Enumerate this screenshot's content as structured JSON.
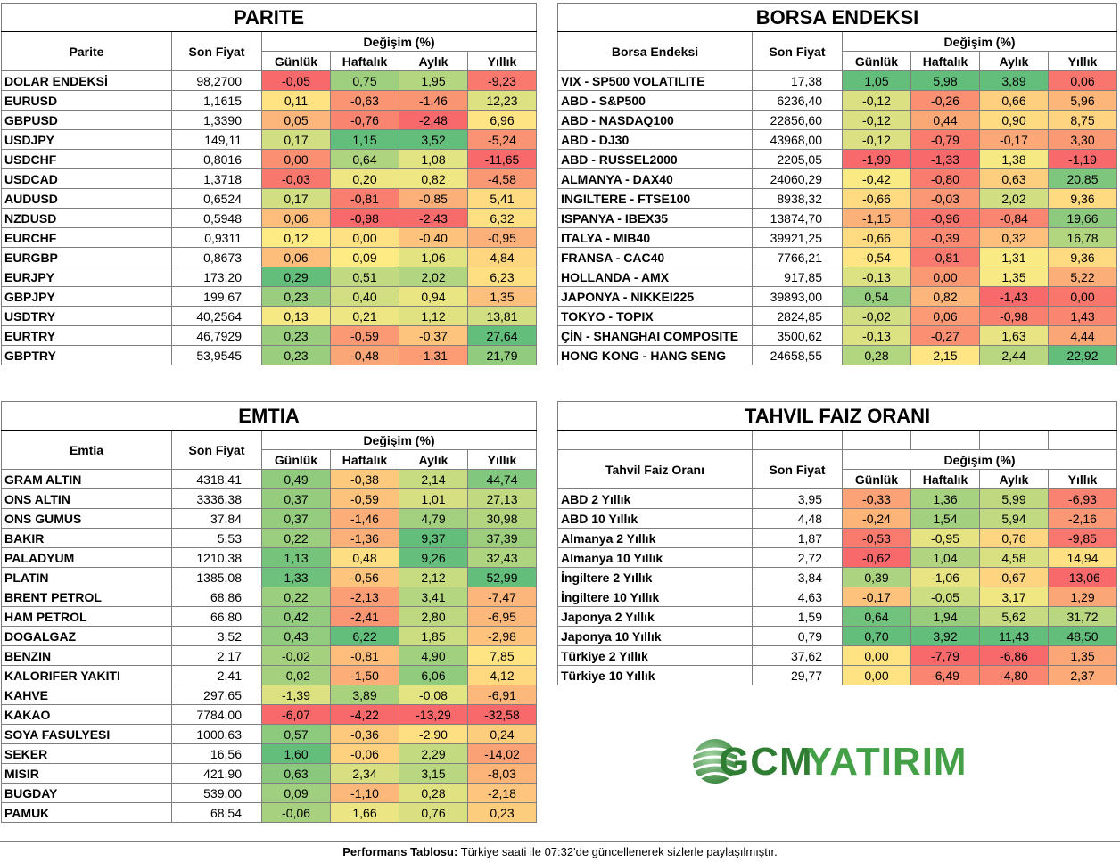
{
  "colors": {
    "green": "#63be7b",
    "yellow": "#ffeb84",
    "red": "#f8696b"
  },
  "parite": {
    "title": "PARITE",
    "col_name": "Parite",
    "col_price": "Son Fiyat",
    "col_change": "Değişim (%)",
    "subcols": [
      "Günlük",
      "Haftalık",
      "Aylık",
      "Yıllık"
    ],
    "rows": [
      {
        "name": "DOLAR ENDEKSİ",
        "price": "98,2700",
        "values": [
          "-0,05",
          "0,75",
          "1,95",
          "-9,23"
        ]
      },
      {
        "name": "EURUSD",
        "price": "1,1615",
        "values": [
          "0,11",
          "-0,63",
          "-1,46",
          "12,23"
        ]
      },
      {
        "name": "GBPUSD",
        "price": "1,3390",
        "values": [
          "0,05",
          "-0,76",
          "-2,48",
          "6,96"
        ]
      },
      {
        "name": "USDJPY",
        "price": "149,11",
        "values": [
          "0,17",
          "1,15",
          "3,52",
          "-5,24"
        ]
      },
      {
        "name": "USDCHF",
        "price": "0,8016",
        "values": [
          "0,00",
          "0,64",
          "1,08",
          "-11,65"
        ]
      },
      {
        "name": "USDCAD",
        "price": "1,3718",
        "values": [
          "-0,03",
          "0,20",
          "0,82",
          "-4,58"
        ]
      },
      {
        "name": "AUDUSD",
        "price": "0,6524",
        "values": [
          "0,17",
          "-0,81",
          "-0,85",
          "5,41"
        ]
      },
      {
        "name": "NZDUSD",
        "price": "0,5948",
        "values": [
          "0,06",
          "-0,98",
          "-2,43",
          "6,32"
        ]
      },
      {
        "name": "EURCHF",
        "price": "0,9311",
        "values": [
          "0,12",
          "0,00",
          "-0,40",
          "-0,95"
        ]
      },
      {
        "name": "EURGBP",
        "price": "0,8673",
        "values": [
          "0,06",
          "0,09",
          "1,06",
          "4,84"
        ]
      },
      {
        "name": "EURJPY",
        "price": "173,20",
        "values": [
          "0,29",
          "0,51",
          "2,02",
          "6,23"
        ]
      },
      {
        "name": "GBPJPY",
        "price": "199,67",
        "values": [
          "0,23",
          "0,40",
          "0,94",
          "1,35"
        ]
      },
      {
        "name": "USDTRY",
        "price": "40,2564",
        "values": [
          "0,13",
          "0,21",
          "1,12",
          "13,81"
        ]
      },
      {
        "name": "EURTRY",
        "price": "46,7929",
        "values": [
          "0,23",
          "-0,59",
          "-0,37",
          "27,64"
        ]
      },
      {
        "name": "GBPTRY",
        "price": "53,9545",
        "values": [
          "0,23",
          "-0,48",
          "-1,31",
          "21,79"
        ]
      }
    ]
  },
  "borsa": {
    "title": "BORSA ENDEKSI",
    "col_name": "Borsa Endeksi",
    "col_price": "Son Fiyat",
    "col_change": "Değişim (%)",
    "subcols": [
      "Günlük",
      "Haftalık",
      "Aylık",
      "Yıllık"
    ],
    "rows": [
      {
        "name": "VIX  - SP500 VOLATILITE",
        "price": "17,38",
        "values": [
          "1,05",
          "5,98",
          "3,89",
          "0,06"
        ]
      },
      {
        "name": "ABD - S&P500",
        "price": "6236,40",
        "values": [
          "-0,12",
          "-0,26",
          "0,66",
          "5,96"
        ]
      },
      {
        "name": "ABD - NASDAQ100",
        "price": "22856,60",
        "values": [
          "-0,12",
          "0,44",
          "0,90",
          "8,75"
        ]
      },
      {
        "name": "ABD - DJ30",
        "price": "43968,00",
        "values": [
          "-0,12",
          "-0,79",
          "-0,17",
          "3,30"
        ]
      },
      {
        "name": "ABD - RUSSEL2000",
        "price": "2205,05",
        "values": [
          "-1,99",
          "-1,33",
          "1,38",
          "-1,19"
        ]
      },
      {
        "name": "ALMANYA - DAX40",
        "price": "24060,29",
        "values": [
          "-0,42",
          "-0,80",
          "0,63",
          "20,85"
        ]
      },
      {
        "name": "INGILTERE - FTSE100",
        "price": "8938,32",
        "values": [
          "-0,66",
          "-0,03",
          "2,02",
          "9,36"
        ]
      },
      {
        "name": "ISPANYA - IBEX35",
        "price": "13874,70",
        "values": [
          "-1,15",
          "-0,96",
          "-0,84",
          "19,66"
        ]
      },
      {
        "name": "ITALYA - MIB40",
        "price": "39921,25",
        "values": [
          "-0,66",
          "-0,39",
          "0,32",
          "16,78"
        ]
      },
      {
        "name": "FRANSA - CAC40",
        "price": "7766,21",
        "values": [
          "-0,54",
          "-0,81",
          "1,31",
          "9,36"
        ]
      },
      {
        "name": "HOLLANDA - AMX",
        "price": "917,85",
        "values": [
          "-0,13",
          "0,00",
          "1,35",
          "5,22"
        ]
      },
      {
        "name": "JAPONYA - NIKKEI225",
        "price": "39893,00",
        "values": [
          "0,54",
          "0,82",
          "-1,43",
          "0,00"
        ]
      },
      {
        "name": "TOKYO - TOPIX",
        "price": "2824,85",
        "values": [
          "-0,02",
          "0,06",
          "-0,98",
          "1,43"
        ]
      },
      {
        "name": "ÇİN - SHANGHAI COMPOSITE",
        "price": "3500,62",
        "values": [
          "-0,13",
          "-0,27",
          "1,63",
          "4,44"
        ]
      },
      {
        "name": "HONG KONG - HANG SENG",
        "price": "24658,55",
        "values": [
          "0,28",
          "2,15",
          "2,44",
          "22,92"
        ]
      }
    ]
  },
  "emtia": {
    "title": "EMTIA",
    "col_name": "Emtia",
    "col_price": "Son Fiyat",
    "col_change": "Değişim (%)",
    "subcols": [
      "Günlük",
      "Haftalık",
      "Aylık",
      "Yıllık"
    ],
    "rows": [
      {
        "name": "GRAM ALTIN",
        "price": "4318,41",
        "values": [
          "0,49",
          "-0,38",
          "2,14",
          "44,74"
        ]
      },
      {
        "name": "ONS ALTIN",
        "price": "3336,38",
        "values": [
          "0,37",
          "-0,59",
          "1,01",
          "27,13"
        ]
      },
      {
        "name": "ONS GUMUS",
        "price": "37,84",
        "values": [
          "0,37",
          "-1,46",
          "4,79",
          "30,98"
        ]
      },
      {
        "name": "BAKIR",
        "price": "5,53",
        "values": [
          "0,22",
          "-1,36",
          "9,37",
          "37,39"
        ]
      },
      {
        "name": "PALADYUM",
        "price": "1210,38",
        "values": [
          "1,13",
          "0,48",
          "9,26",
          "32,43"
        ]
      },
      {
        "name": "PLATIN",
        "price": "1385,08",
        "values": [
          "1,33",
          "-0,56",
          "2,12",
          "52,99"
        ]
      },
      {
        "name": "BRENT PETROL",
        "price": "68,86",
        "values": [
          "0,22",
          "-2,13",
          "3,41",
          "-7,47"
        ]
      },
      {
        "name": "HAM PETROL",
        "price": "66,80",
        "values": [
          "0,42",
          "-2,41",
          "2,80",
          "-6,95"
        ]
      },
      {
        "name": "DOGALGAZ",
        "price": "3,52",
        "values": [
          "0,43",
          "6,22",
          "1,85",
          "-2,98"
        ]
      },
      {
        "name": "BENZIN",
        "price": "2,17",
        "values": [
          "-0,02",
          "-0,81",
          "4,90",
          "7,85"
        ]
      },
      {
        "name": "KALORIFER YAKITI",
        "price": "2,41",
        "values": [
          "-0,02",
          "-1,50",
          "6,06",
          "4,12"
        ]
      },
      {
        "name": "KAHVE",
        "price": "297,65",
        "values": [
          "-1,39",
          "3,89",
          "-0,08",
          "-6,91"
        ]
      },
      {
        "name": "KAKAO",
        "price": "7784,00",
        "values": [
          "-6,07",
          "-4,22",
          "-13,29",
          "-32,58"
        ]
      },
      {
        "name": "SOYA FASULYESI",
        "price": "1000,63",
        "values": [
          "0,57",
          "-0,36",
          "-2,90",
          "0,24"
        ]
      },
      {
        "name": "SEKER",
        "price": "16,56",
        "values": [
          "1,60",
          "-0,06",
          "2,29",
          "-14,02"
        ]
      },
      {
        "name": "MISIR",
        "price": "421,90",
        "values": [
          "0,63",
          "2,34",
          "3,15",
          "-8,03"
        ]
      },
      {
        "name": "BUGDAY",
        "price": "539,00",
        "values": [
          "0,09",
          "-1,10",
          "0,28",
          "-2,18"
        ]
      },
      {
        "name": "PAMUK",
        "price": "68,54",
        "values": [
          "-0,06",
          "1,66",
          "0,76",
          "0,23"
        ]
      }
    ]
  },
  "tahvil": {
    "title": "TAHVIL FAIZ ORANI",
    "col_name": "Tahvil Faiz Oranı",
    "col_price": "Son Fiyat",
    "col_change": "Değişim (%)",
    "subcols": [
      "Günlük",
      "Haftalık",
      "Aylık",
      "Yıllık"
    ],
    "rows": [
      {
        "name": "ABD 2 Yıllık",
        "price": "3,95",
        "values": [
          "-0,33",
          "1,36",
          "5,99",
          "-6,93"
        ]
      },
      {
        "name": "ABD 10 Yıllık",
        "price": "4,48",
        "values": [
          "-0,24",
          "1,54",
          "5,94",
          "-2,16"
        ]
      },
      {
        "name": "Almanya 2 Yıllık",
        "price": "1,87",
        "values": [
          "-0,53",
          "-0,95",
          "0,76",
          "-9,85"
        ]
      },
      {
        "name": "Almanya 10 Yıllık",
        "price": "2,72",
        "values": [
          "-0,62",
          "1,04",
          "4,58",
          "14,94"
        ]
      },
      {
        "name": "İngiltere 2 Yıllık",
        "price": "3,84",
        "values": [
          "0,39",
          "-1,06",
          "0,67",
          "-13,06"
        ]
      },
      {
        "name": "İngiltere 10 Yıllık",
        "price": "4,63",
        "values": [
          "-0,17",
          "-0,05",
          "3,17",
          "1,29"
        ]
      },
      {
        "name": "Japonya 2 Yıllık",
        "price": "1,59",
        "values": [
          "0,64",
          "1,94",
          "5,62",
          "31,72"
        ]
      },
      {
        "name": "Japonya 10 Yıllık",
        "price": "0,79",
        "values": [
          "0,70",
          "3,92",
          "11,43",
          "48,50"
        ]
      },
      {
        "name": "Türkiye 2 Yıllık",
        "price": "37,62",
        "values": [
          "0,00",
          "-7,79",
          "-6,86",
          "1,35"
        ]
      },
      {
        "name": "Türkiye 10 Yıllık",
        "price": "29,77",
        "values": [
          "0,00",
          "-6,49",
          "-4,80",
          "2,37"
        ]
      }
    ]
  },
  "logo": {
    "part1": "GCM",
    "part2": "YATIRIM",
    "color1": "#2e7d32",
    "color2": "#43a047"
  },
  "footer": {
    "bold": "Performans Tablosu:",
    "text": " Türkiye saati ile 07:32'de güncellenerek sizlerle paylaşılmıştır."
  }
}
